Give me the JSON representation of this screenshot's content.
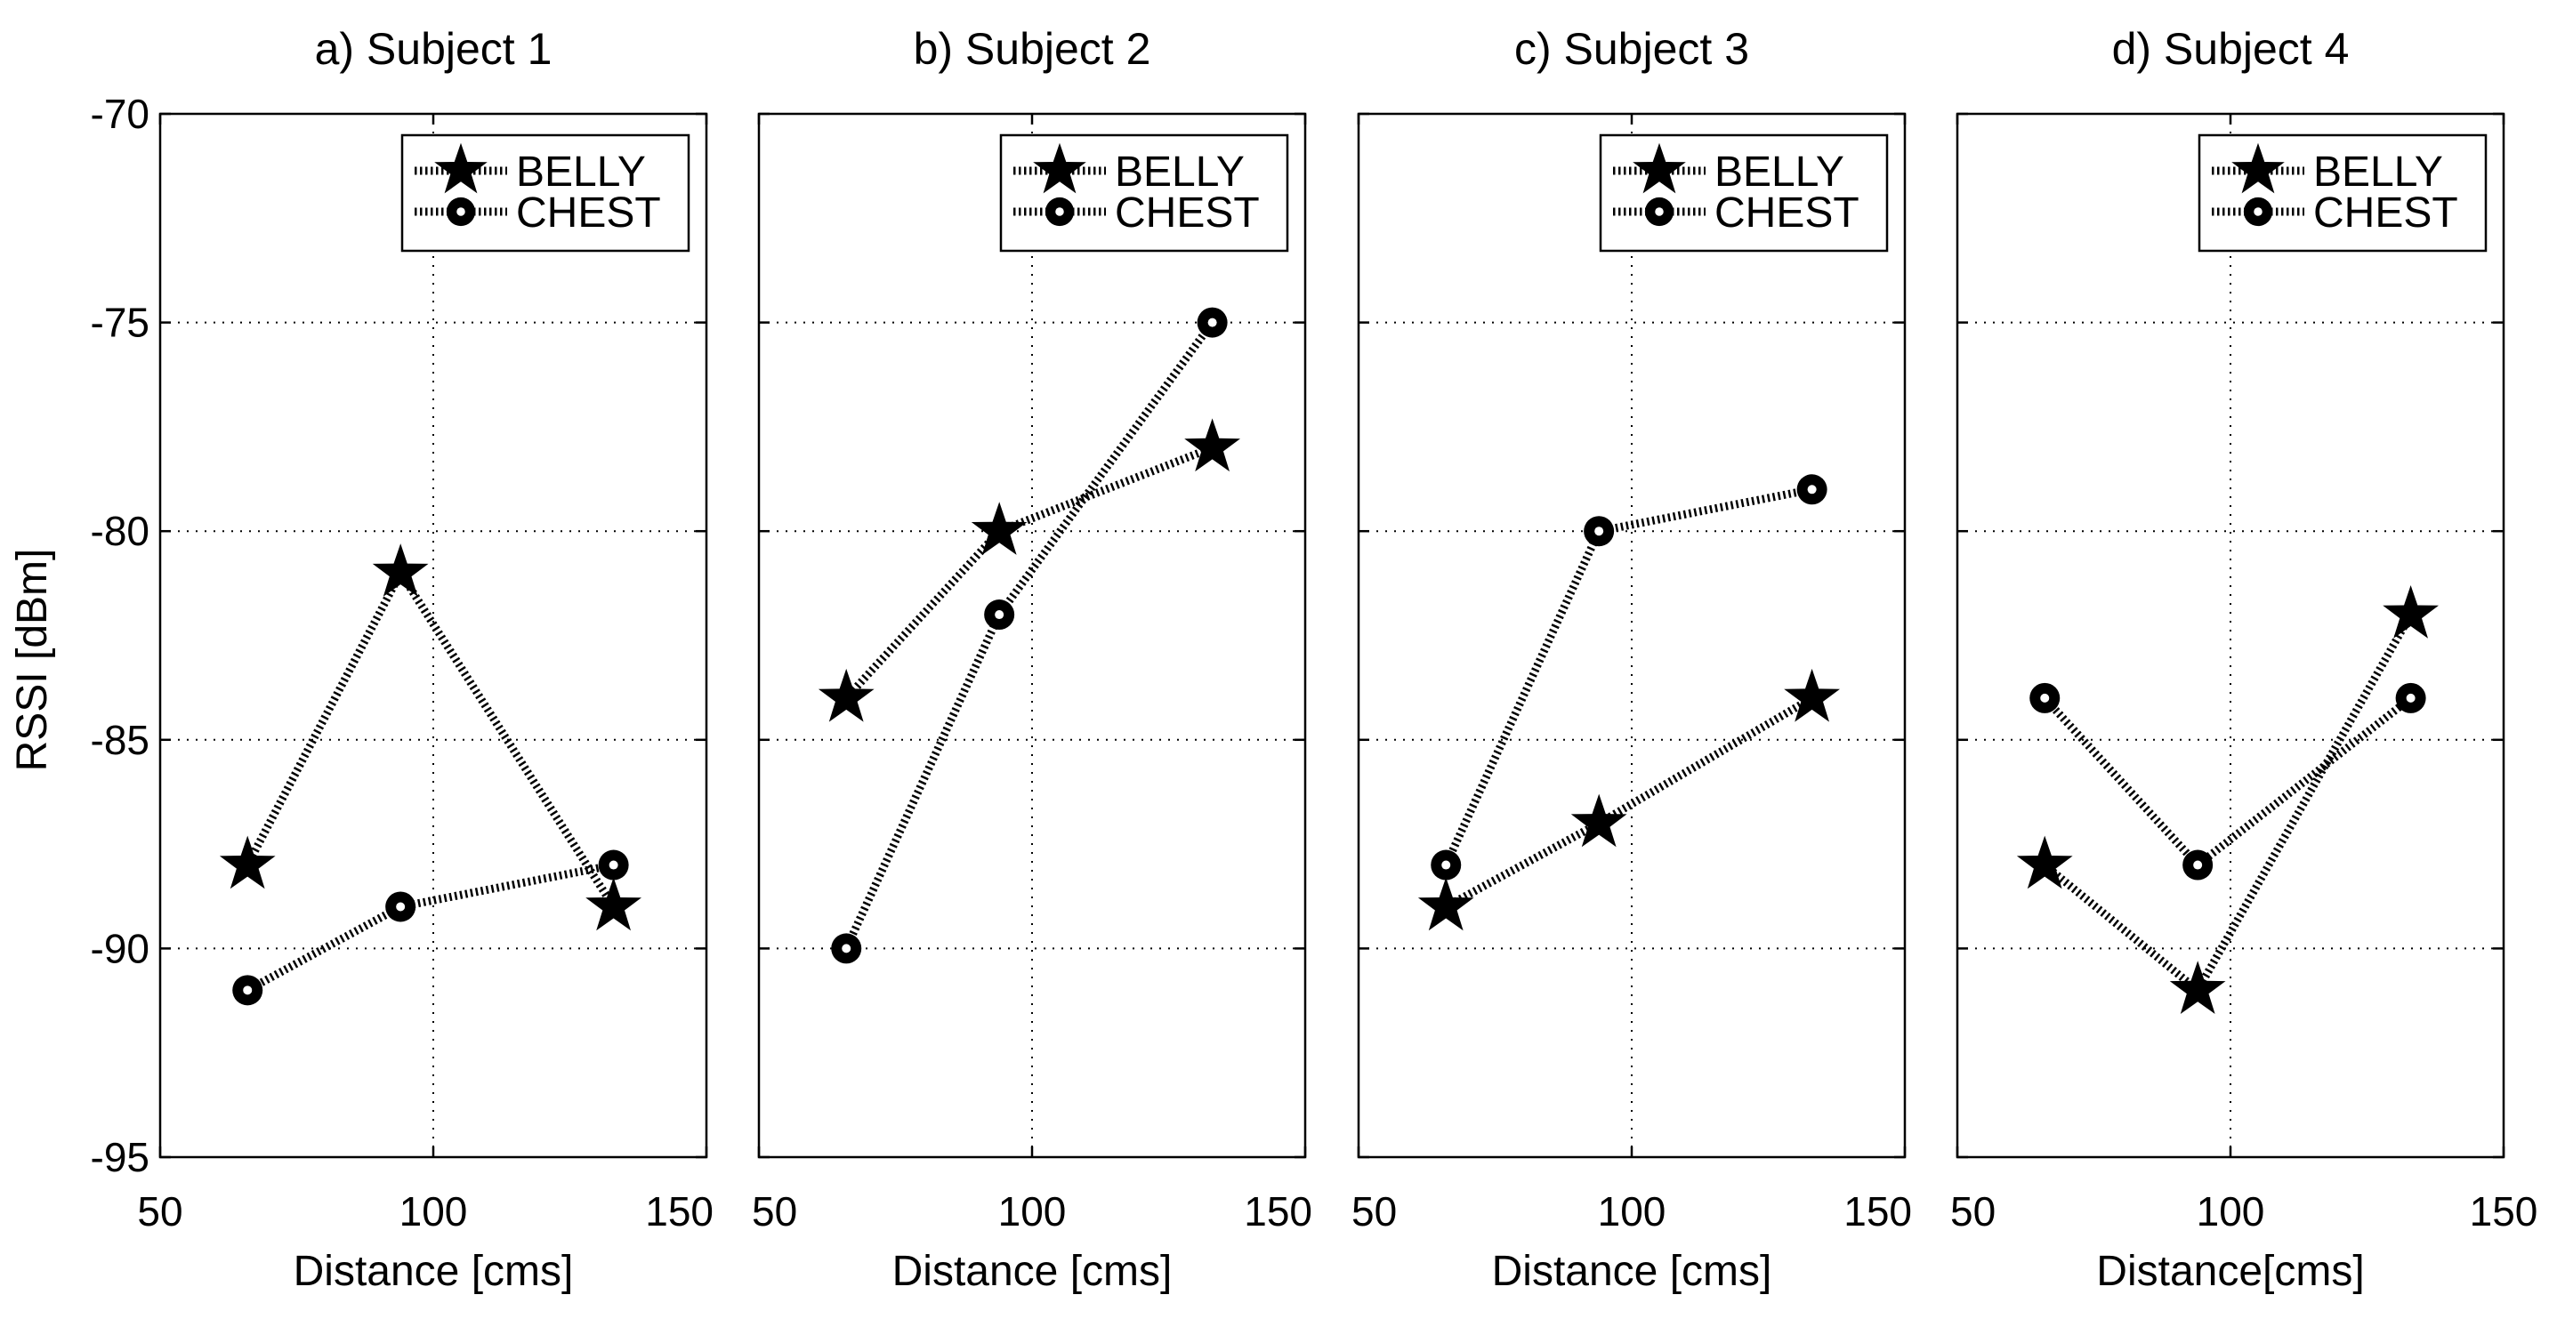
{
  "figure": {
    "ylabel": "RSSI [dBm]"
  },
  "chart_data": [
    {
      "type": "line",
      "title": "a) Subject 1",
      "xlabel": "Distance [cms]",
      "ylabel": "RSSI [dBm]",
      "xlim": [
        50,
        150
      ],
      "ylim": [
        -95,
        -70
      ],
      "xticks": [
        50,
        100,
        150
      ],
      "yticks": [
        -95,
        -90,
        -85,
        -80,
        -75,
        -70
      ],
      "grid": true,
      "legend_position": "top-right",
      "series": [
        {
          "name": "BELLY",
          "marker": "star",
          "x": [
            66,
            94,
            133
          ],
          "y": [
            -88,
            -81,
            -89
          ]
        },
        {
          "name": "CHEST",
          "marker": "circle",
          "x": [
            66,
            94,
            133
          ],
          "y": [
            -91,
            -89,
            -88
          ]
        }
      ]
    },
    {
      "type": "line",
      "title": "b) Subject 2",
      "xlabel": "Distance [cms]",
      "ylabel": "",
      "xlim": [
        50,
        150
      ],
      "ylim": [
        -95,
        -70
      ],
      "xticks": [
        50,
        100,
        150
      ],
      "yticks": [
        -95,
        -90,
        -85,
        -80,
        -75,
        -70
      ],
      "grid": true,
      "legend_position": "top-right",
      "series": [
        {
          "name": "BELLY",
          "marker": "star",
          "x": [
            66,
            94,
            133
          ],
          "y": [
            -84,
            -80,
            -78
          ]
        },
        {
          "name": "CHEST",
          "marker": "circle",
          "x": [
            66,
            94,
            133
          ],
          "y": [
            -90,
            -82,
            -75
          ]
        }
      ]
    },
    {
      "type": "line",
      "title": "c) Subject 3",
      "xlabel": "Distance [cms]",
      "ylabel": "",
      "xlim": [
        50,
        150
      ],
      "ylim": [
        -95,
        -70
      ],
      "xticks": [
        50,
        100,
        150
      ],
      "yticks": [
        -95,
        -90,
        -85,
        -80,
        -75,
        -70
      ],
      "grid": true,
      "legend_position": "top-right",
      "series": [
        {
          "name": "BELLY",
          "marker": "star",
          "x": [
            66,
            94,
            133
          ],
          "y": [
            -89,
            -87,
            -84
          ]
        },
        {
          "name": "CHEST",
          "marker": "circle",
          "x": [
            66,
            94,
            133
          ],
          "y": [
            -88,
            -80,
            -79
          ]
        }
      ]
    },
    {
      "type": "line",
      "title": "d) Subject 4",
      "xlabel": "Distance[cms]",
      "ylabel": "",
      "xlim": [
        50,
        150
      ],
      "ylim": [
        -95,
        -70
      ],
      "xticks": [
        50,
        100,
        150
      ],
      "yticks": [
        -95,
        -90,
        -85,
        -80,
        -75,
        -70
      ],
      "grid": true,
      "legend_position": "top-right",
      "series": [
        {
          "name": "BELLY",
          "marker": "star",
          "x": [
            66,
            94,
            133
          ],
          "y": [
            -88,
            -91,
            -82
          ]
        },
        {
          "name": "CHEST",
          "marker": "circle",
          "x": [
            66,
            94,
            133
          ],
          "y": [
            -84,
            -88,
            -84
          ]
        }
      ]
    }
  ]
}
